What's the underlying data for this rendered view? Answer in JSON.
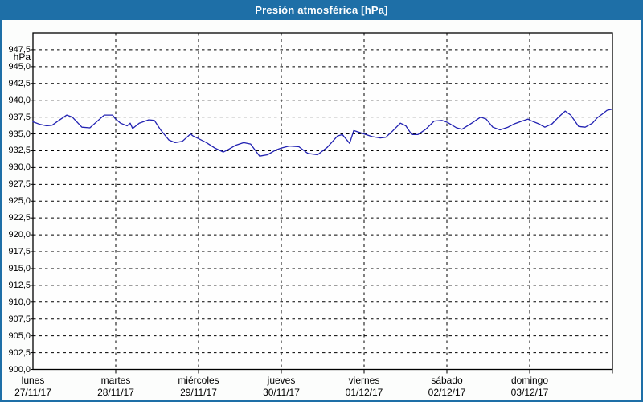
{
  "window": {
    "title": "Presión atmosférica [hPa]"
  },
  "colors": {
    "titlebar": "#1e6fa7",
    "window_border": "#1e6fa7",
    "line": "#2222b2",
    "grid": "#000000",
    "plot_background": "#fefefe"
  },
  "chart_data": {
    "type": "line",
    "title": "Presión atmosférica [hPa]",
    "ylabel_unit": "hPa",
    "ylim": [
      900,
      950
    ],
    "ytick_step": 2.5,
    "grid": "dashed",
    "legend": "none",
    "x_hours_span": 168,
    "ytick_labels": [
      "947,5",
      "945,0",
      "942,5",
      "940,0",
      "937,5",
      "935,0",
      "932,5",
      "930,0",
      "927,5",
      "925,0",
      "922,5",
      "920,0",
      "917,5",
      "915,0",
      "912,5",
      "910,0",
      "907,5",
      "905,0",
      "902,5",
      "900,0"
    ],
    "days": [
      {
        "name": "lunes",
        "date": "27/11/17"
      },
      {
        "name": "martes",
        "date": "28/11/17"
      },
      {
        "name": "miércoles",
        "date": "29/11/17"
      },
      {
        "name": "jueves",
        "date": "30/11/17"
      },
      {
        "name": "viernes",
        "date": "01/12/17"
      },
      {
        "name": "sábado",
        "date": "02/12/17"
      },
      {
        "name": "domingo",
        "date": "03/12/17"
      }
    ],
    "series": [
      {
        "name": "Presión atmosférica",
        "color": "#2222b2",
        "points": [
          [
            0,
            936.8
          ],
          [
            2.1,
            936.4
          ],
          [
            4,
            936.2
          ],
          [
            5.6,
            936.3
          ],
          [
            7.5,
            937.0
          ],
          [
            9.8,
            937.8
          ],
          [
            11.4,
            937.5
          ],
          [
            14.2,
            936.0
          ],
          [
            16.5,
            935.9
          ],
          [
            18.9,
            937.0
          ],
          [
            20.7,
            937.8
          ],
          [
            23.1,
            937.8
          ],
          [
            23.8,
            937.3
          ],
          [
            25.4,
            936.6
          ],
          [
            27.3,
            936.2
          ],
          [
            28.2,
            936.6
          ],
          [
            28.9,
            935.8
          ],
          [
            30.8,
            936.6
          ],
          [
            33.6,
            937.1
          ],
          [
            35.2,
            937.0
          ],
          [
            37,
            935.6
          ],
          [
            39.4,
            934.1
          ],
          [
            41.2,
            933.7
          ],
          [
            43.3,
            933.9
          ],
          [
            45.7,
            935.0
          ],
          [
            46.4,
            934.7
          ],
          [
            48,
            934.3
          ],
          [
            50.3,
            933.7
          ],
          [
            52.7,
            932.9
          ],
          [
            55.2,
            932.3
          ],
          [
            56.4,
            932.6
          ],
          [
            58.7,
            933.3
          ],
          [
            61.1,
            933.7
          ],
          [
            63.1,
            933.5
          ],
          [
            65.7,
            931.7
          ],
          [
            68,
            931.9
          ],
          [
            70.4,
            932.6
          ],
          [
            72,
            932.9
          ],
          [
            74.3,
            933.2
          ],
          [
            77.1,
            933.1
          ],
          [
            79.7,
            932.1
          ],
          [
            82.5,
            931.9
          ],
          [
            85.3,
            933.0
          ],
          [
            88.3,
            934.7
          ],
          [
            89.7,
            934.9
          ],
          [
            91.8,
            933.6
          ],
          [
            93,
            935.5
          ],
          [
            94.8,
            935.2
          ],
          [
            96,
            935.0
          ],
          [
            98.3,
            934.6
          ],
          [
            100.7,
            934.4
          ],
          [
            102.3,
            934.5
          ],
          [
            104.2,
            935.4
          ],
          [
            106.5,
            936.6
          ],
          [
            108.1,
            936.2
          ],
          [
            109.8,
            934.9
          ],
          [
            111.6,
            934.9
          ],
          [
            113.9,
            935.7
          ],
          [
            116.3,
            936.9
          ],
          [
            118.6,
            937.0
          ],
          [
            120.2,
            936.7
          ],
          [
            122.8,
            935.9
          ],
          [
            124.4,
            935.7
          ],
          [
            127.2,
            936.6
          ],
          [
            129.8,
            937.5
          ],
          [
            131.4,
            937.2
          ],
          [
            133.3,
            936.0
          ],
          [
            135.4,
            935.6
          ],
          [
            137.7,
            936.0
          ],
          [
            139.6,
            936.5
          ],
          [
            141.2,
            936.8
          ],
          [
            143.5,
            937.2
          ],
          [
            144.2,
            937.0
          ],
          [
            146.6,
            936.5
          ],
          [
            148.4,
            936.0
          ],
          [
            150.5,
            936.5
          ],
          [
            152.4,
            937.5
          ],
          [
            154.3,
            938.4
          ],
          [
            155.9,
            937.8
          ],
          [
            158.2,
            936.1
          ],
          [
            160.1,
            936.0
          ],
          [
            162.2,
            936.6
          ],
          [
            163.6,
            937.4
          ],
          [
            165.2,
            938.0
          ],
          [
            166.4,
            938.5
          ],
          [
            168,
            938.7
          ]
        ]
      }
    ]
  }
}
